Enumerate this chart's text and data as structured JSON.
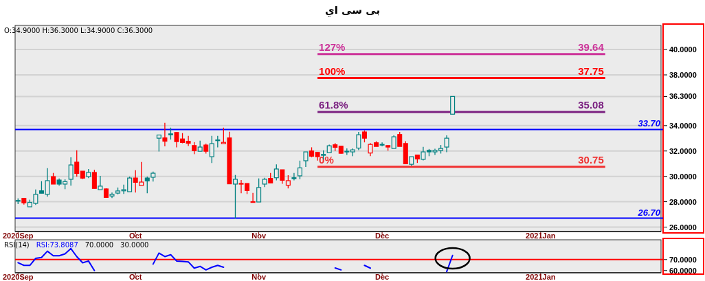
{
  "chart_data": [
    {
      "type": "candlestick",
      "title": "بی سی اي",
      "categories": [
        "2020Sep",
        null,
        null,
        null,
        null,
        null,
        null,
        null,
        null,
        null,
        null,
        null,
        null,
        null,
        null,
        null,
        null,
        null,
        null,
        null,
        "Oct",
        null,
        null,
        null,
        null,
        null,
        null,
        null,
        null,
        null,
        null,
        null,
        null,
        null,
        null,
        null,
        null,
        null,
        null,
        null,
        null,
        "Nov",
        null,
        null,
        null,
        null,
        null,
        null,
        null,
        null,
        null,
        null,
        null,
        null,
        null,
        null,
        null,
        null,
        null,
        null,
        null,
        null,
        "Dec",
        null,
        null,
        null,
        null,
        null,
        null,
        null,
        null,
        null,
        null,
        null,
        null,
        null,
        null,
        null,
        null,
        null,
        null,
        null,
        null,
        null,
        null,
        null,
        null,
        null,
        null,
        "2021Jan",
        null,
        null,
        null,
        null,
        null,
        null,
        null,
        null,
        null,
        null,
        null,
        null,
        null,
        null,
        null,
        null,
        null,
        null,
        null,
        null
      ],
      "ohlc": [
        [
          28.08,
          28.27,
          27.82,
          28.1
        ],
        [
          28.27,
          28.27,
          27.78,
          27.91
        ],
        [
          27.6,
          28.16,
          27.6,
          27.95
        ],
        [
          27.87,
          28.97,
          27.75,
          28.58
        ],
        [
          28.86,
          29.62,
          28.67,
          28.67
        ],
        [
          28.58,
          30.65,
          28.4,
          29.66
        ],
        [
          29.98,
          30.27,
          29.39,
          29.39
        ],
        [
          29.71,
          29.84,
          29.26,
          29.39
        ],
        [
          29.39,
          29.77,
          28.99,
          29.59
        ],
        [
          29.77,
          31.5,
          29.26,
          30.9
        ],
        [
          31.12,
          32.05,
          29.98,
          30.23
        ],
        [
          30.41,
          30.41,
          29.8,
          29.86
        ],
        [
          29.98,
          30.58,
          29.86,
          30.31
        ],
        [
          30.31,
          30.52,
          29.05,
          29.05
        ],
        [
          28.95,
          30.04,
          28.95,
          29.23
        ],
        [
          29.01,
          29.06,
          28.31,
          28.34
        ],
        [
          28.45,
          28.72,
          28.29,
          28.58
        ],
        [
          28.68,
          29.12,
          28.58,
          28.85
        ],
        [
          28.86,
          29.35,
          28.61,
          28.95
        ],
        [
          28.79,
          29.98,
          28.79,
          29.87
        ],
        [
          29.87,
          30.49,
          28.72,
          29.53
        ],
        [
          29.28,
          31.14,
          29.28,
          29.55
        ],
        [
          29.87,
          29.98,
          28.67,
          29.64
        ],
        [
          29.93,
          30.38,
          29.59,
          30.25
        ],
        [
          33.01,
          33.26,
          31.96,
          33.26
        ],
        [
          33.03,
          34.22,
          32.36,
          32.77
        ],
        [
          33.35,
          33.84,
          32.9,
          33.28
        ],
        [
          33.46,
          33.46,
          32.29,
          32.74
        ],
        [
          32.95,
          33.41,
          32.61,
          32.67
        ],
        [
          32.76,
          33.19,
          32.4,
          32.61
        ],
        [
          32.43,
          32.7,
          31.75,
          32.02
        ],
        [
          31.98,
          32.81,
          31.98,
          32.31
        ],
        [
          32.47,
          32.58,
          31.8,
          31.98
        ],
        [
          31.55,
          33.19,
          31.05,
          32.58
        ],
        [
          32.85,
          33.19,
          32.29,
          32.87
        ],
        [
          32.58,
          33.84,
          32.58,
          32.68
        ],
        [
          33.03,
          33.52,
          29.41,
          29.41
        ],
        [
          29.39,
          30.11,
          26.68,
          29.77
        ],
        [
          29.44,
          29.71,
          28.67,
          29.39
        ],
        [
          29.44,
          29.44,
          28.61,
          28.88
        ],
        [
          28.0,
          28.7,
          27.98,
          27.98
        ],
        [
          27.98,
          29.84,
          27.98,
          29.12
        ],
        [
          29.39,
          29.89,
          29.16,
          29.77
        ],
        [
          29.84,
          30.27,
          29.48,
          29.48
        ],
        [
          29.89,
          30.94,
          29.69,
          30.58
        ],
        [
          30.52,
          30.52,
          29.41,
          29.69
        ],
        [
          29.3,
          30.09,
          29.05,
          29.66
        ],
        [
          29.89,
          30.27,
          29.69,
          29.82
        ],
        [
          30.04,
          31.24,
          29.77,
          30.67
        ],
        [
          31.23,
          31.93,
          30.74,
          31.93
        ],
        [
          32.0,
          32.29,
          31.5,
          31.59
        ],
        [
          31.89,
          31.89,
          31.24,
          31.55
        ],
        [
          31.66,
          32.05,
          31.33,
          31.73
        ],
        [
          31.87,
          32.5,
          31.87,
          32.41
        ],
        [
          32.49,
          32.63,
          32.0,
          32.29
        ],
        [
          32.38,
          32.38,
          31.78,
          31.82
        ],
        [
          31.98,
          32.2,
          31.69,
          31.93
        ],
        [
          31.93,
          32.2,
          31.59,
          32.09
        ],
        [
          32.23,
          33.5,
          32.07,
          33.28
        ],
        [
          33.5,
          33.62,
          32.68,
          33.01
        ],
        [
          31.84,
          32.63,
          31.59,
          32.52
        ],
        [
          32.65,
          32.77,
          32.36,
          32.36
        ],
        [
          32.52,
          32.68,
          32.36,
          32.47
        ],
        [
          32.43,
          32.43,
          32.02,
          32.31
        ],
        [
          32.2,
          33.24,
          32.2,
          33.12
        ],
        [
          33.3,
          33.5,
          32.36,
          32.36
        ],
        [
          32.59,
          32.77,
          30.99,
          30.99
        ],
        [
          30.95,
          31.55,
          30.83,
          31.55
        ],
        [
          31.68,
          31.68,
          31.06,
          31.37
        ],
        [
          31.34,
          32.32,
          31.26,
          31.93
        ],
        [
          32.05,
          32.16,
          31.59,
          31.93
        ],
        [
          31.93,
          32.18,
          31.69,
          32.05
        ],
        [
          32.04,
          32.47,
          31.8,
          32.2
        ],
        [
          32.31,
          33.23,
          31.91,
          33.01
        ],
        [
          34.9,
          36.3,
          34.9,
          36.3
        ],
        null,
        null,
        null,
        null,
        null,
        null,
        null,
        null,
        null,
        null,
        null,
        null,
        null,
        null,
        null,
        null,
        null,
        null,
        null,
        null,
        null,
        null,
        null,
        null,
        null,
        null,
        null,
        null,
        null,
        null,
        null,
        null,
        null,
        null,
        null
      ],
      "colors": [
        "#008080",
        "#ff0000",
        "#008080",
        "#008080",
        "#008080",
        "#008080",
        "#ff0000",
        "#008080",
        "#008080",
        "#008080",
        "#ff0000",
        "#ff0000",
        "#008080",
        "#ff0000",
        "#008080",
        "#ff0000",
        "#008080",
        "#008080",
        "#008080",
        "#008080",
        "#ff0000",
        "#ff0000",
        "#008080",
        "#008080",
        "#008080",
        "#ff0000",
        "#008080",
        "#ff0000",
        "#ff0000",
        "#ff0000",
        "#ff0000",
        "#008080",
        "#ff0000",
        "#008080",
        "#008080",
        "#ff0000",
        "#ff0000",
        "#008080",
        "#ff0000",
        "#ff0000",
        "#ff0000",
        "#008080",
        "#008080",
        "#ff0000",
        "#008080",
        "#ff0000",
        "#ff0000",
        "#008080",
        "#008080",
        "#008080",
        "#ff0000",
        "#ff0000",
        "#008080",
        "#008080",
        "#ff0000",
        "#ff0000",
        "#008080",
        "#008080",
        "#008080",
        "#ff0000",
        "#ff0000",
        "#ff0000",
        "#008080",
        "#ff0000",
        "#008080",
        "#ff0000",
        "#ff0000",
        "#008080",
        "#ff0000",
        "#008080",
        "#008080",
        "#008080",
        "#008080",
        "#008080",
        "#008080",
        null,
        null,
        null,
        null,
        null,
        null,
        null,
        null,
        null,
        null,
        null,
        null,
        null,
        null,
        null,
        null,
        null,
        null,
        null,
        null,
        null,
        null,
        null,
        null,
        null,
        null,
        null,
        null,
        null,
        null,
        null,
        null,
        null,
        null,
        null
      ],
      "ylim": [
        25.65,
        41.9
      ],
      "yticks": [
        {
          "value": 26,
          "label": "26.0000"
        },
        {
          "value": 28,
          "label": "28.0000"
        },
        {
          "value": 30,
          "label": "30.0000"
        },
        {
          "value": 32,
          "label": "32.0000"
        },
        {
          "value": 34,
          "label": "34.0000"
        },
        {
          "value": 36.3,
          "label": "36.3000"
        },
        {
          "value": 38,
          "label": "38.0000"
        },
        {
          "value": 40,
          "label": "40.0000"
        }
      ],
      "grid": "y",
      "ref_lines": [
        {
          "axis": "y",
          "value": 33.7,
          "label": "33.70",
          "color": "#0000ff"
        },
        {
          "axis": "y",
          "value": 26.7,
          "label": "26.70",
          "color": "#0000ff"
        },
        {
          "axis": "y",
          "value": 39.64,
          "label": "39.64",
          "color": "#cc3399"
        },
        {
          "axis": "y",
          "value": 37.75,
          "label": "37.75",
          "color": "#ff0000"
        },
        {
          "axis": "y",
          "value": 35.08,
          "label": "35.08",
          "color": "#7a2080"
        },
        {
          "axis": "y",
          "value": 30.75,
          "label": "30.75",
          "color": "#f03030"
        }
      ],
      "annotations": [
        "O:34.9000   H:36.3000   L:34.9000   C:36.3000",
        {
          "text": "127%",
          "y": 39.64
        },
        {
          "text": "100%",
          "y": 37.75
        },
        {
          "text": "61.8%",
          "y": 35.08
        },
        {
          "text": "0%",
          "y": 30.75
        }
      ]
    },
    {
      "type": "line",
      "categories": [
        "2020Sep",
        null,
        null,
        null,
        null,
        null,
        null,
        null,
        null,
        null,
        null,
        null,
        null,
        null,
        null,
        null,
        null,
        null,
        null,
        null,
        "Oct",
        null,
        null,
        null,
        null,
        null,
        null,
        null,
        null,
        null,
        null,
        null,
        null,
        null,
        null,
        null,
        null,
        null,
        null,
        null,
        null,
        "Nov",
        null,
        null,
        null,
        null,
        null,
        null,
        null,
        null,
        null,
        null,
        null,
        null,
        null,
        null,
        null,
        null,
        null,
        null,
        null,
        null,
        "Dec",
        null,
        null,
        null,
        null,
        null,
        null,
        null,
        null,
        null,
        null,
        null,
        null,
        null,
        null,
        null,
        null,
        null,
        null,
        null,
        null,
        null,
        null,
        null,
        null,
        null,
        null,
        "2021Jan",
        null,
        null,
        null,
        null,
        null,
        null,
        null,
        null,
        null,
        null,
        null,
        null,
        null,
        null,
        null,
        null,
        null,
        null,
        null,
        null
      ],
      "series": [
        {
          "name": "RSI:73.8087",
          "color": "#0000ff",
          "values": [
            67.1,
            64.7,
            64.7,
            71.1,
            71.9,
            77.6,
            73.5,
            73.5,
            75.2,
            80.0,
            72.7,
            67.1,
            68.7,
            60.0,
            null,
            null,
            null,
            null,
            null,
            null,
            null,
            null,
            null,
            65.9,
            75.9,
            72.7,
            74.4,
            68.7,
            68.3,
            67.9,
            62.2,
            63.8,
            60.6,
            63.0,
            64.7,
            63.0,
            null,
            null,
            null,
            null,
            null,
            null,
            null,
            null,
            null,
            null,
            null,
            null,
            null,
            null,
            null,
            null,
            null,
            null,
            62.4,
            60.6,
            null,
            null,
            null,
            64.7,
            62.2,
            null,
            null,
            null,
            null,
            null,
            null,
            null,
            null,
            null,
            null,
            null,
            null,
            59,
            73.8,
            null,
            null,
            null,
            null,
            null,
            null,
            null,
            null,
            null,
            null,
            null,
            null,
            null,
            null,
            null,
            null,
            null,
            null,
            null,
            null,
            null,
            null,
            null,
            null,
            null,
            null,
            null,
            null,
            null,
            null,
            null,
            null,
            null,
            null,
            null
          ]
        }
      ],
      "ylim": [
        58,
        88
      ],
      "yticks": [
        {
          "value": 60,
          "label": "60.0000"
        },
        {
          "value": 70,
          "label": "70.0000"
        }
      ],
      "ref_lines": [
        {
          "axis": "y",
          "value": 70,
          "color": "#ff0000"
        }
      ],
      "annotations": [
        "RSI(14)",
        "70.0000",
        "30.0000"
      ]
    }
  ]
}
